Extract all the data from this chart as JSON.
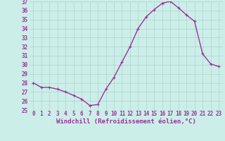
{
  "x": [
    0,
    1,
    2,
    3,
    4,
    5,
    6,
    7,
    8,
    9,
    10,
    11,
    12,
    13,
    14,
    15,
    16,
    17,
    18,
    19,
    20,
    21,
    22,
    23
  ],
  "y": [
    28.0,
    27.5,
    27.5,
    27.3,
    27.0,
    26.6,
    26.2,
    25.5,
    25.6,
    27.3,
    28.6,
    30.3,
    32.0,
    34.0,
    35.3,
    36.1,
    36.8,
    37.0,
    36.3,
    35.5,
    34.8,
    31.2,
    30.1,
    29.8
  ],
  "line_color": "#993399",
  "marker": "+",
  "bg_color": "#cceee8",
  "grid_color": "#aad4cc",
  "xlabel": "Windchill (Refroidissement éolien,°C)",
  "ylim": [
    25,
    37
  ],
  "xlim": [
    -0.5,
    23.5
  ],
  "yticks": [
    25,
    26,
    27,
    28,
    29,
    30,
    31,
    32,
    33,
    34,
    35,
    36,
    37
  ],
  "xticks": [
    0,
    1,
    2,
    3,
    4,
    5,
    6,
    7,
    8,
    9,
    10,
    11,
    12,
    13,
    14,
    15,
    16,
    17,
    18,
    19,
    20,
    21,
    22,
    23
  ],
  "tick_label_fontsize": 5.5,
  "xlabel_fontsize": 6.5,
  "line_width": 1.0,
  "marker_size": 3.5
}
